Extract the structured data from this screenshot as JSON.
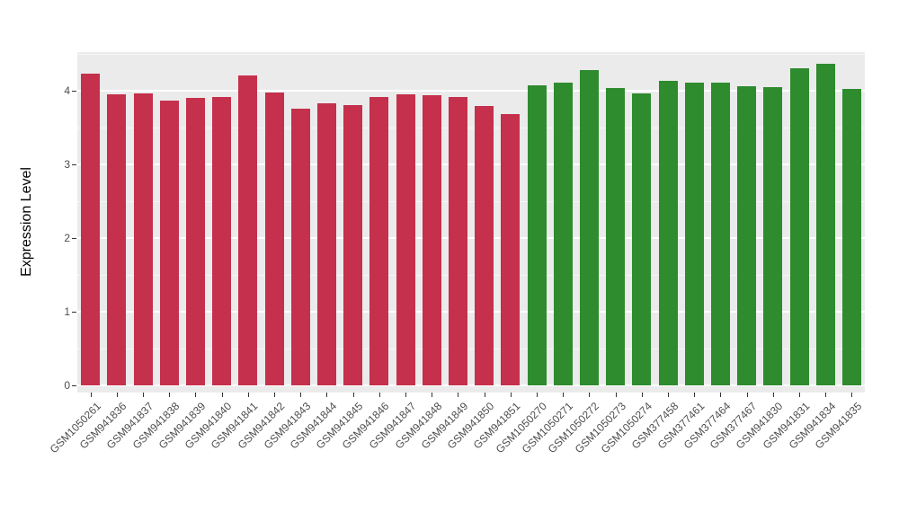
{
  "chart_data": {
    "type": "bar",
    "title": "",
    "xlabel": "",
    "ylabel": "Expression Level",
    "ylim": [
      0,
      4.5
    ],
    "yticks": [
      0,
      1,
      2,
      3,
      4
    ],
    "grid": "on",
    "legend": "none",
    "categories": [
      "GSM1050261",
      "GSM941836",
      "GSM941837",
      "GSM941838",
      "GSM941839",
      "GSM941840",
      "GSM941841",
      "GSM941842",
      "GSM941843",
      "GSM941844",
      "GSM941845",
      "GSM941846",
      "GSM941847",
      "GSM941848",
      "GSM941849",
      "GSM941850",
      "GSM941851",
      "GSM1050270",
      "GSM1050271",
      "GSM1050272",
      "GSM1050273",
      "GSM1050274",
      "GSM377458",
      "GSM377461",
      "GSM377464",
      "GSM377467",
      "GSM941830",
      "GSM941831",
      "GSM941834",
      "GSM941835"
    ],
    "values": [
      4.23,
      3.95,
      3.96,
      3.86,
      3.9,
      3.91,
      4.21,
      3.98,
      3.76,
      3.83,
      3.81,
      3.92,
      3.95,
      3.94,
      3.91,
      3.79,
      3.68,
      4.07,
      4.11,
      4.28,
      4.04,
      3.96,
      4.13,
      4.11,
      4.11,
      4.06,
      4.05,
      4.3,
      4.36,
      4.03
    ],
    "groups": [
      "group1",
      "group1",
      "group1",
      "group1",
      "group1",
      "group1",
      "group1",
      "group1",
      "group1",
      "group1",
      "group1",
      "group1",
      "group1",
      "group1",
      "group1",
      "group1",
      "group1",
      "group2",
      "group2",
      "group2",
      "group2",
      "group2",
      "group2",
      "group2",
      "group2",
      "group2",
      "group2",
      "group2",
      "group2",
      "group2"
    ],
    "colors": {
      "group1": "#C5304C",
      "group2": "#2E8B2E",
      "panel_background": "#EBEBEB",
      "grid": "#FFFFFF",
      "tick_text": "#4D4D4D",
      "axis_title_text": "#000000"
    }
  }
}
